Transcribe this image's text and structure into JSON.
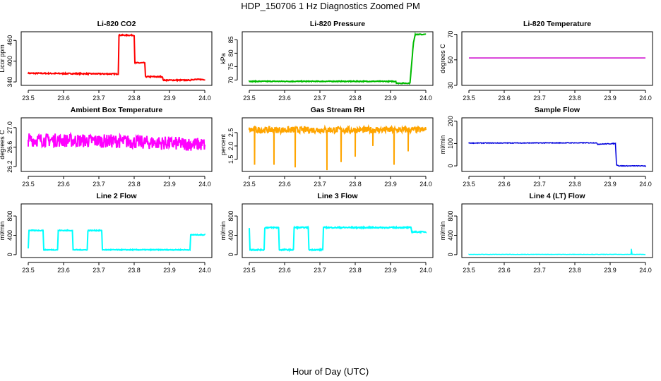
{
  "figure": {
    "title": "HDP_150706  1 Hz Diagnostics Zoomed PM",
    "xlabel": "Hour of Day (UTC)"
  },
  "chart_data": [
    {
      "id": "co2",
      "type": "line",
      "title": "Li-820 CO2",
      "ylabel": "Licor ppm",
      "color": "#ff0000",
      "xlim": [
        23.48,
        24.02
      ],
      "ylim": [
        330,
        485
      ],
      "xticks": [
        "23.5",
        "23.6",
        "23.7",
        "23.8",
        "23.9",
        "24.0"
      ],
      "yticks": [
        "340",
        "400",
        "460"
      ],
      "x": [
        23.5,
        23.755,
        23.757,
        23.8,
        23.802,
        23.83,
        23.832,
        23.88,
        23.882,
        23.96,
        23.962,
        24.0
      ],
      "y": [
        365,
        363,
        475,
        475,
        395,
        395,
        355,
        355,
        345,
        345,
        347,
        347
      ],
      "noise": 1.5
    },
    {
      "id": "pressure",
      "type": "line",
      "title": "Li-820 Pressure",
      "ylabel": "kPa",
      "color": "#00bb00",
      "xlim": [
        23.48,
        24.02
      ],
      "ylim": [
        68,
        88
      ],
      "xticks": [
        "23.5",
        "23.6",
        "23.7",
        "23.8",
        "23.9",
        "24.0"
      ],
      "yticks": [
        "70",
        "75",
        "80",
        "85"
      ],
      "x": [
        23.5,
        23.915,
        23.917,
        23.955,
        23.965,
        23.97,
        24.0
      ],
      "y": [
        69.5,
        69.5,
        68.8,
        68.8,
        84,
        87,
        87
      ],
      "noise": 0.15
    },
    {
      "id": "temperature",
      "type": "line",
      "title": "Li-820 Temperature",
      "ylabel": "degrees C",
      "color": "#cc00cc",
      "xlim": [
        23.48,
        24.02
      ],
      "ylim": [
        30,
        72
      ],
      "xticks": [
        "23.5",
        "23.6",
        "23.7",
        "23.8",
        "23.9",
        "24.0"
      ],
      "yticks": [
        "30",
        "50",
        "70"
      ],
      "x": [
        23.5,
        24.0
      ],
      "y": [
        51.5,
        51.5
      ],
      "noise": 0
    },
    {
      "id": "ambient",
      "type": "line",
      "title": "Ambient Box Temperature",
      "ylabel": "degrees C",
      "color": "#ff00ff",
      "xlim": [
        23.48,
        24.02
      ],
      "ylim": [
        26.1,
        27.2
      ],
      "xticks": [
        "23.5",
        "23.6",
        "23.7",
        "23.8",
        "23.9",
        "24.0"
      ],
      "yticks": [
        "26.2",
        "26.6",
        "27.0"
      ],
      "x": [
        23.5,
        23.75,
        24.0
      ],
      "y": [
        26.75,
        26.72,
        26.65
      ],
      "noise": 0.14
    },
    {
      "id": "rh",
      "type": "line",
      "title": "Gas Stream RH",
      "ylabel": "percent",
      "color": "#ffa500",
      "xlim": [
        23.48,
        24.02
      ],
      "ylim": [
        1.05,
        3.05
      ],
      "xticks": [
        "23.5",
        "23.6",
        "23.7",
        "23.8",
        "23.9",
        "24.0"
      ],
      "yticks": [
        "1.5",
        "2.0",
        "2.5"
      ],
      "x": [
        23.5,
        24.0
      ],
      "y": [
        2.6,
        2.6
      ],
      "noise": 0.12,
      "dips": [
        [
          23.515,
          1.3
        ],
        [
          23.57,
          1.3
        ],
        [
          23.63,
          1.2
        ],
        [
          23.72,
          1.1
        ],
        [
          23.76,
          1.4
        ],
        [
          23.8,
          1.6
        ],
        [
          23.85,
          2.0
        ],
        [
          23.91,
          1.3
        ],
        [
          23.95,
          1.8
        ]
      ]
    },
    {
      "id": "sample",
      "type": "line",
      "title": "Sample Flow",
      "ylabel": "ml/min",
      "color": "#0000dd",
      "xlim": [
        23.48,
        24.02
      ],
      "ylim": [
        -25,
        215
      ],
      "xticks": [
        "23.5",
        "23.6",
        "23.7",
        "23.8",
        "23.9",
        "24.0"
      ],
      "yticks": [
        "0",
        "100",
        "200"
      ],
      "x": [
        23.5,
        23.86,
        23.865,
        23.915,
        23.918,
        23.925,
        24.0
      ],
      "y": [
        102,
        103,
        97,
        100,
        5,
        0,
        0
      ],
      "noise": 1.5
    },
    {
      "id": "line2",
      "type": "line",
      "title": "Line 2 Flow",
      "ylabel": "ml/min",
      "color": "#00ffff",
      "xlim": [
        23.48,
        24.02
      ],
      "ylim": [
        -60,
        1050
      ],
      "xticks": [
        "23.5",
        "23.6",
        "23.7",
        "23.8",
        "23.9",
        "24.0"
      ],
      "yticks": [
        "0",
        "400",
        "800"
      ],
      "x": [
        23.5,
        23.502,
        23.542,
        23.544,
        23.583,
        23.585,
        23.625,
        23.627,
        23.667,
        23.669,
        23.708,
        23.71,
        23.958,
        23.96,
        24.0
      ],
      "y": [
        130,
        500,
        500,
        100,
        100,
        500,
        500,
        100,
        100,
        500,
        500,
        100,
        100,
        410,
        410
      ],
      "noise": 8
    },
    {
      "id": "line3",
      "type": "line",
      "title": "Line 3 Flow",
      "ylabel": "ml/min",
      "color": "#00ffff",
      "xlim": [
        23.48,
        24.02
      ],
      "ylim": [
        -60,
        1050
      ],
      "xticks": [
        "23.5",
        "23.6",
        "23.7",
        "23.8",
        "23.9",
        "24.0"
      ],
      "yticks": [
        "0",
        "400",
        "800"
      ],
      "x": [
        23.5,
        23.502,
        23.504,
        23.542,
        23.544,
        23.583,
        23.585,
        23.625,
        23.627,
        23.667,
        23.669,
        23.708,
        23.71,
        23.958,
        23.96,
        24.0
      ],
      "y": [
        550,
        100,
        100,
        100,
        560,
        560,
        100,
        100,
        560,
        560,
        100,
        100,
        560,
        560,
        470,
        470
      ],
      "noise": 12
    },
    {
      "id": "line4",
      "type": "line",
      "title": "Line 4 (LT) Flow",
      "ylabel": "ml/min",
      "color": "#00ffff",
      "xlim": [
        23.48,
        24.02
      ],
      "ylim": [
        -60,
        1050
      ],
      "xticks": [
        "23.5",
        "23.6",
        "23.7",
        "23.8",
        "23.9",
        "24.0"
      ],
      "yticks": [
        "0",
        "400",
        "800"
      ],
      "x": [
        23.5,
        23.959,
        23.96,
        23.962,
        24.0
      ],
      "y": [
        5,
        5,
        120,
        5,
        5
      ],
      "noise": 3
    }
  ]
}
